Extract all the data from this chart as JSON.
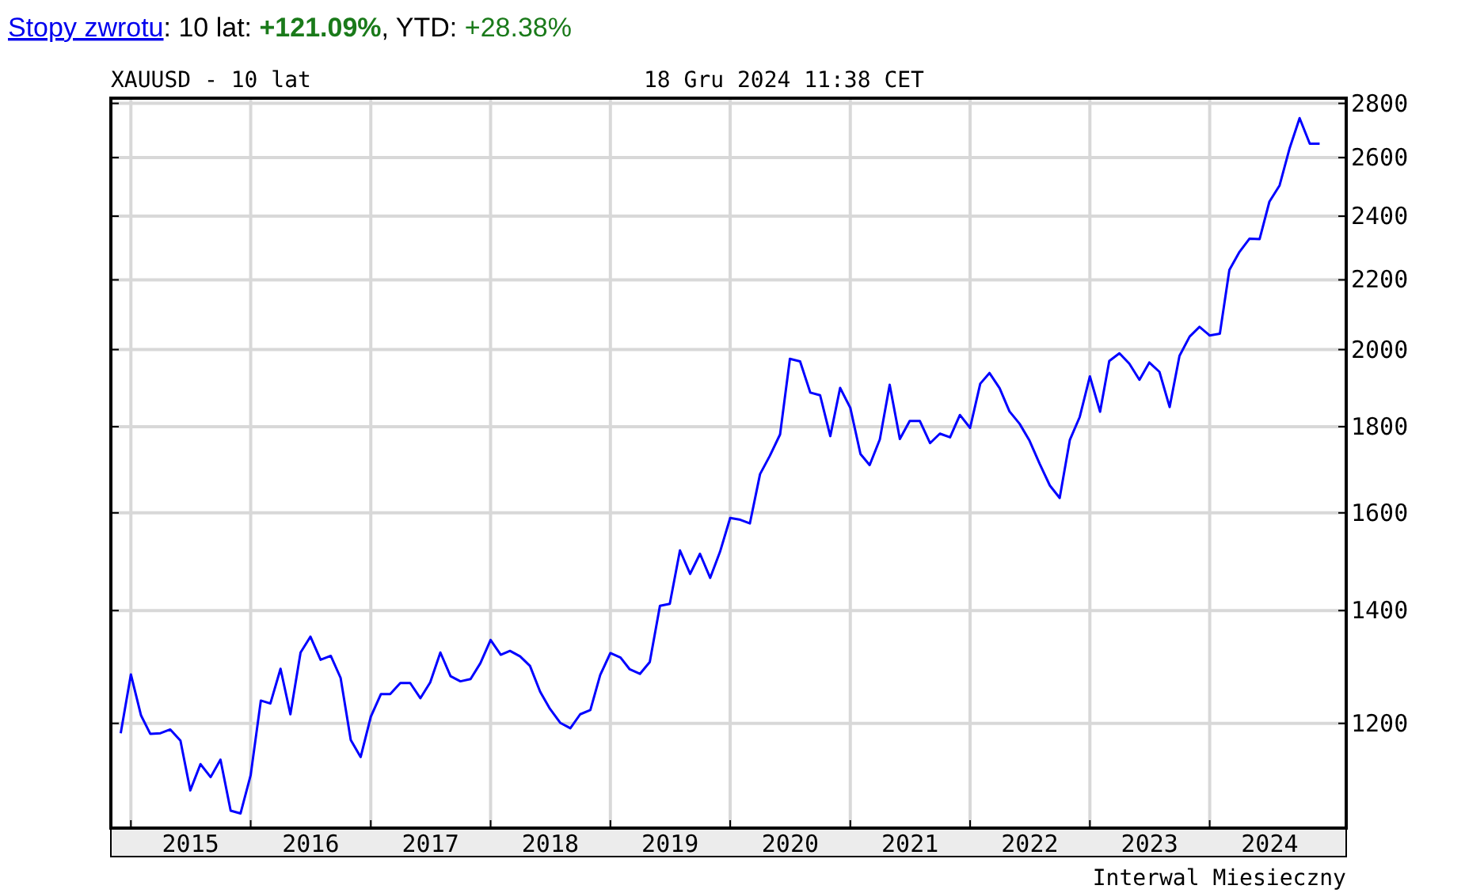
{
  "chart_data": {
    "type": "line",
    "title": "Stopy zwrotu: 10 lat: +121.09%, YTD: +28.38%",
    "subtitle": "XAUUSD - 10 lat",
    "annotations": [
      "18 Gru 2024 11:38 CET",
      "Interwal Miesieczny"
    ],
    "x": [
      "2014-12",
      "2015-01",
      "2015-02",
      "2015-03",
      "2015-04",
      "2015-05",
      "2015-06",
      "2015-07",
      "2015-08",
      "2015-09",
      "2015-10",
      "2015-11",
      "2015-12",
      "2016-01",
      "2016-02",
      "2016-03",
      "2016-04",
      "2016-05",
      "2016-06",
      "2016-07",
      "2016-08",
      "2016-09",
      "2016-10",
      "2016-11",
      "2016-12",
      "2017-01",
      "2017-02",
      "2017-03",
      "2017-04",
      "2017-05",
      "2017-06",
      "2017-07",
      "2017-08",
      "2017-09",
      "2017-10",
      "2017-11",
      "2017-12",
      "2018-01",
      "2018-02",
      "2018-03",
      "2018-04",
      "2018-05",
      "2018-06",
      "2018-07",
      "2018-08",
      "2018-09",
      "2018-10",
      "2018-11",
      "2018-12",
      "2019-01",
      "2019-02",
      "2019-03",
      "2019-04",
      "2019-05",
      "2019-06",
      "2019-07",
      "2019-08",
      "2019-09",
      "2019-10",
      "2019-11",
      "2019-12",
      "2020-01",
      "2020-02",
      "2020-03",
      "2020-04",
      "2020-05",
      "2020-06",
      "2020-07",
      "2020-08",
      "2020-09",
      "2020-10",
      "2020-11",
      "2020-12",
      "2021-01",
      "2021-02",
      "2021-03",
      "2021-04",
      "2021-05",
      "2021-06",
      "2021-07",
      "2021-08",
      "2021-09",
      "2021-10",
      "2021-11",
      "2021-12",
      "2022-01",
      "2022-02",
      "2022-03",
      "2022-04",
      "2022-05",
      "2022-06",
      "2022-07",
      "2022-08",
      "2022-09",
      "2022-10",
      "2022-11",
      "2022-12",
      "2023-01",
      "2023-02",
      "2023-03",
      "2023-04",
      "2023-05",
      "2023-06",
      "2023-07",
      "2023-08",
      "2023-09",
      "2023-10",
      "2023-11",
      "2023-12",
      "2024-01",
      "2024-02",
      "2024-03",
      "2024-04",
      "2024-05",
      "2024-06",
      "2024-07",
      "2024-08",
      "2024-09",
      "2024-10",
      "2024-11",
      "2024-12"
    ],
    "series": [
      {
        "color": "#0000ff",
        "values": [
          1184,
          1283,
          1213,
          1183,
          1184,
          1190,
          1172,
          1095,
          1135,
          1115,
          1142,
          1065,
          1061,
          1118,
          1238,
          1233,
          1293,
          1215,
          1322,
          1351,
          1309,
          1316,
          1277,
          1173,
          1146,
          1211,
          1249,
          1249,
          1268,
          1268,
          1242,
          1269,
          1322,
          1280,
          1271,
          1275,
          1303,
          1345,
          1318,
          1325,
          1315,
          1298,
          1253,
          1224,
          1201,
          1192,
          1215,
          1222,
          1282,
          1321,
          1313,
          1292,
          1284,
          1305,
          1409,
          1413,
          1520,
          1472,
          1513,
          1464,
          1517,
          1589,
          1585,
          1577,
          1687,
          1730,
          1781,
          1975,
          1968,
          1886,
          1879,
          1777,
          1898,
          1847,
          1734,
          1708,
          1769,
          1906,
          1770,
          1814,
          1814,
          1760,
          1783,
          1774,
          1829,
          1797,
          1909,
          1937,
          1897,
          1838,
          1807,
          1766,
          1711,
          1661,
          1633,
          1768,
          1824,
          1928,
          1837,
          1969,
          1990,
          1962,
          1919,
          1965,
          1940,
          1849,
          1983,
          2036,
          2063,
          2039,
          2044,
          2230,
          2286,
          2327,
          2326,
          2448,
          2503,
          2635,
          2744,
          2650,
          2650
        ]
      }
    ],
    "log": true,
    "ylim": [
      1040,
      2820
    ],
    "yticks": [
      1200,
      1400,
      1600,
      1800,
      2000,
      2200,
      2400,
      2600,
      2800
    ],
    "xlim": [
      "2014-11-01",
      "2025-02-20"
    ],
    "xticks": [
      {
        "value": "2015-01-01",
        "label": null
      },
      {
        "value": "2015-07-02",
        "label": "2015"
      },
      {
        "value": "2016-01-01",
        "label": null
      },
      {
        "value": "2016-07-02",
        "label": "2016"
      },
      {
        "value": "2017-01-01",
        "label": null
      },
      {
        "value": "2017-07-02",
        "label": "2017"
      },
      {
        "value": "2018-01-01",
        "label": null
      },
      {
        "value": "2018-07-02",
        "label": "2018"
      },
      {
        "value": "2019-01-01",
        "label": null
      },
      {
        "value": "2019-07-02",
        "label": "2019"
      },
      {
        "value": "2020-01-01",
        "label": null
      },
      {
        "value": "2020-07-02",
        "label": "2020"
      },
      {
        "value": "2021-01-01",
        "label": null
      },
      {
        "value": "2021-07-02",
        "label": "2021"
      },
      {
        "value": "2022-01-01",
        "label": null
      },
      {
        "value": "2022-07-02",
        "label": "2022"
      },
      {
        "value": "2023-01-01",
        "label": null
      },
      {
        "value": "2023-07-02",
        "label": "2023"
      },
      {
        "value": "2024-01-01",
        "label": null
      },
      {
        "value": "2024-07-02",
        "label": "2024"
      }
    ],
    "grid": true,
    "line_style": "solid"
  }
}
